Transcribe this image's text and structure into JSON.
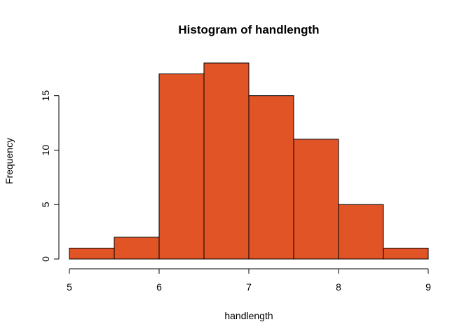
{
  "chart_data": {
    "type": "bar",
    "title": "Histogram of handlength",
    "xlabel": "handlength",
    "ylabel": "Frequency",
    "bins": [
      {
        "from": 5.0,
        "to": 5.5,
        "count": 1
      },
      {
        "from": 5.5,
        "to": 6.0,
        "count": 2
      },
      {
        "from": 6.0,
        "to": 6.5,
        "count": 17
      },
      {
        "from": 6.5,
        "to": 7.0,
        "count": 18
      },
      {
        "from": 7.0,
        "to": 7.5,
        "count": 15
      },
      {
        "from": 7.5,
        "to": 8.0,
        "count": 11
      },
      {
        "from": 8.0,
        "to": 8.5,
        "count": 5
      },
      {
        "from": 8.5,
        "to": 9.0,
        "count": 1
      }
    ],
    "xlim": [
      5,
      9
    ],
    "ylim": [
      0,
      18
    ],
    "x_ticks": [
      "5",
      "6",
      "7",
      "8",
      "9"
    ],
    "y_ticks": [
      "0",
      "5",
      "10",
      "15"
    ],
    "bar_color": "#E05426",
    "grid": false,
    "legend": "none"
  }
}
